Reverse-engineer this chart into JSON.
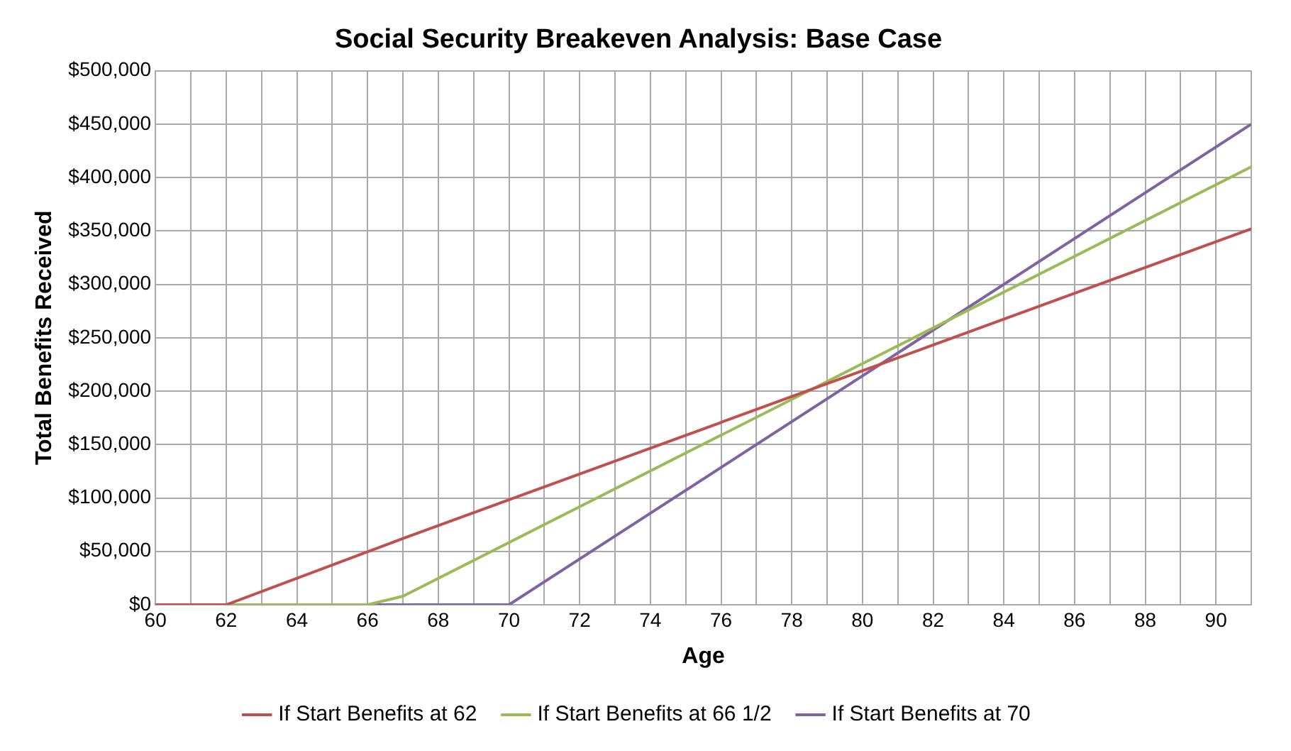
{
  "chart_data": {
    "type": "line",
    "title": "Social Security Breakeven Analysis: Base Case",
    "xlabel": "Age",
    "ylabel": "Total Benefits Received",
    "series": [
      {
        "name": "If Start Benefits at 62",
        "color": "#c0504d",
        "x": [
          60,
          62,
          67,
          91
        ],
        "values": [
          0,
          0,
          62000,
          352000
        ]
      },
      {
        "name": "If Start Benefits at 66 1/2",
        "color": "#9bbb59",
        "x": [
          60,
          66,
          67,
          91
        ],
        "values": [
          0,
          0,
          8000,
          410000
        ]
      },
      {
        "name": "If Start Benefits at 70",
        "color": "#8064a2",
        "x": [
          60,
          70,
          91
        ],
        "values": [
          0,
          0,
          450000
        ]
      }
    ],
    "xlim": [
      60,
      91
    ],
    "xticks": [
      60,
      {
        "value": 61,
        "label": null
      },
      62,
      {
        "value": 63,
        "label": null
      },
      64,
      {
        "value": 65,
        "label": null
      },
      66,
      {
        "value": 67,
        "label": null
      },
      68,
      {
        "value": 69,
        "label": null
      },
      70,
      {
        "value": 71,
        "label": null
      },
      72,
      {
        "value": 73,
        "label": null
      },
      74,
      {
        "value": 75,
        "label": null
      },
      76,
      {
        "value": 77,
        "label": null
      },
      78,
      {
        "value": 79,
        "label": null
      },
      80,
      {
        "value": 81,
        "label": null
      },
      82,
      {
        "value": 83,
        "label": null
      },
      84,
      {
        "value": 85,
        "label": null
      },
      86,
      {
        "value": 87,
        "label": null
      },
      88,
      {
        "value": 89,
        "label": null
      },
      90,
      {
        "value": 91,
        "label": null
      }
    ],
    "ylim": [
      0,
      500000
    ],
    "yticks": [
      {
        "value": 0,
        "label": "$0"
      },
      {
        "value": 50000,
        "label": "$50,000"
      },
      {
        "value": 100000,
        "label": "$100,000"
      },
      {
        "value": 150000,
        "label": "$150,000"
      },
      {
        "value": 200000,
        "label": "$200,000"
      },
      {
        "value": 250000,
        "label": "$250,000"
      },
      {
        "value": 300000,
        "label": "$300,000"
      },
      {
        "value": 350000,
        "label": "$350,000"
      },
      {
        "value": 400000,
        "label": "$400,000"
      },
      {
        "value": 450000,
        "label": "$450,000"
      },
      {
        "value": 500000,
        "label": "$500,000"
      }
    ],
    "grid": true,
    "legend": "bottom",
    "marker": "none",
    "line_style": "solid"
  }
}
